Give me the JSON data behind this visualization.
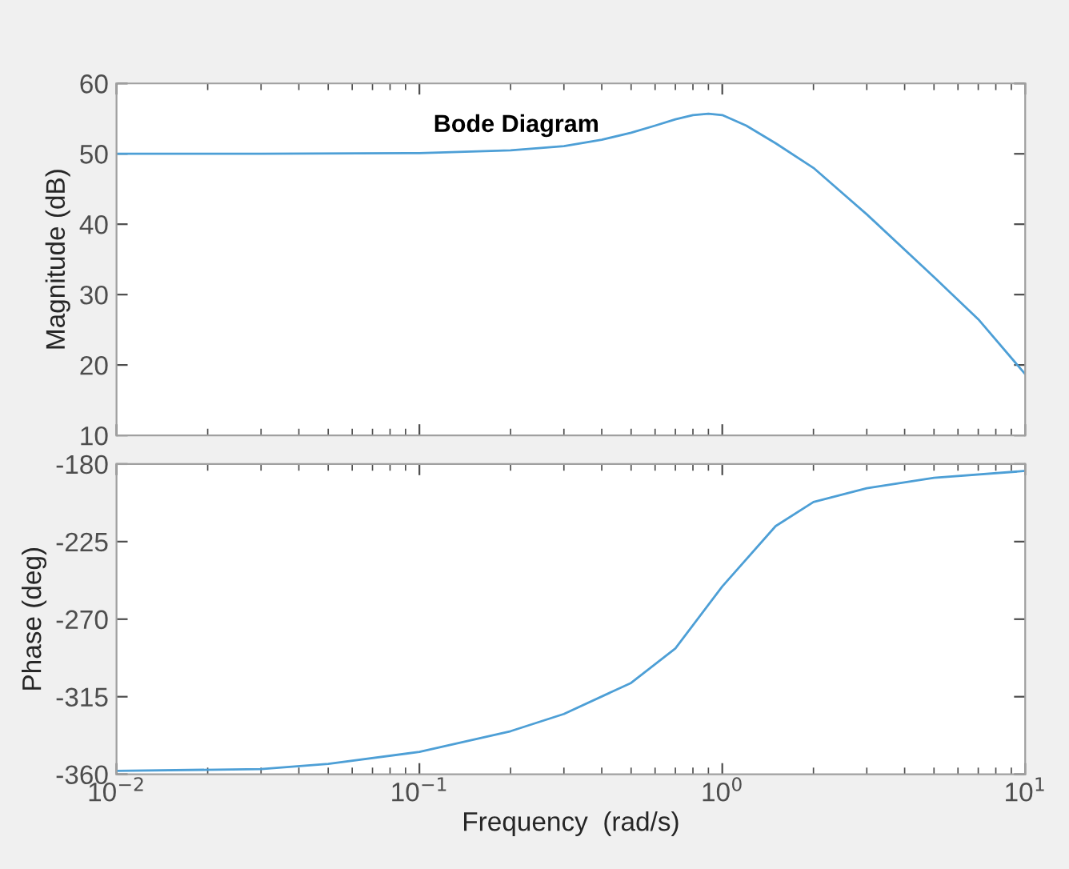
{
  "chart_data": [
    {
      "type": "line",
      "title": "Bode Diagram",
      "ylabel": "Magnitude (dB)",
      "log": "x",
      "grid": false,
      "tick_labels": "y",
      "marker": "none",
      "line_style": "solid",
      "xlim": [
        0.01,
        10
      ],
      "ylim": [
        10,
        60
      ],
      "yticks": [
        10,
        20,
        30,
        40,
        50,
        60
      ],
      "xticks": [
        {
          "value": 0.01,
          "label": null
        },
        {
          "value": 0.1,
          "label": null
        },
        {
          "value": 1,
          "label": null
        },
        {
          "value": 10,
          "label": null
        }
      ],
      "x": [
        0.01,
        0.03,
        0.1,
        0.2,
        0.3,
        0.4,
        0.5,
        0.6,
        0.7,
        0.8,
        0.9,
        1.0,
        1.2,
        1.5,
        2,
        3,
        5,
        7,
        10
      ],
      "series": [
        {
          "color": "#4d9fd6",
          "values": [
            50,
            50,
            50.1,
            50.5,
            51.1,
            52,
            53,
            54,
            54.9,
            55.5,
            55.7,
            55.5,
            54,
            51.5,
            48,
            41.4,
            32.5,
            26.5,
            18.7
          ]
        }
      ]
    },
    {
      "type": "line",
      "xlabel": "Frequency  (rad/s)",
      "ylabel": "Phase (deg)",
      "log": "x",
      "grid": false,
      "marker": "none",
      "line_style": "solid",
      "xlim": [
        0.01,
        10
      ],
      "ylim": [
        -360,
        -180
      ],
      "yticks": [
        -360,
        -315,
        -270,
        -225,
        -180
      ],
      "xticks": [
        {
          "value": 0.01,
          "label": "10$^{−2}$"
        },
        {
          "value": 0.1,
          "label": "10$^{−1}$"
        },
        {
          "value": 1,
          "label": "10$^{0}$"
        },
        {
          "value": 10,
          "label": "10$^{1}$"
        }
      ],
      "x": [
        0.01,
        0.03,
        0.05,
        0.1,
        0.2,
        0.3,
        0.5,
        0.7,
        1.0,
        1.5,
        2,
        3,
        5,
        10
      ],
      "series": [
        {
          "color": "#4d9fd6",
          "values": [
            -358,
            -357,
            -354,
            -347,
            -335,
            -325,
            -307,
            -287,
            -251,
            -216,
            -202,
            -194,
            -188,
            -184
          ]
        }
      ]
    }
  ]
}
